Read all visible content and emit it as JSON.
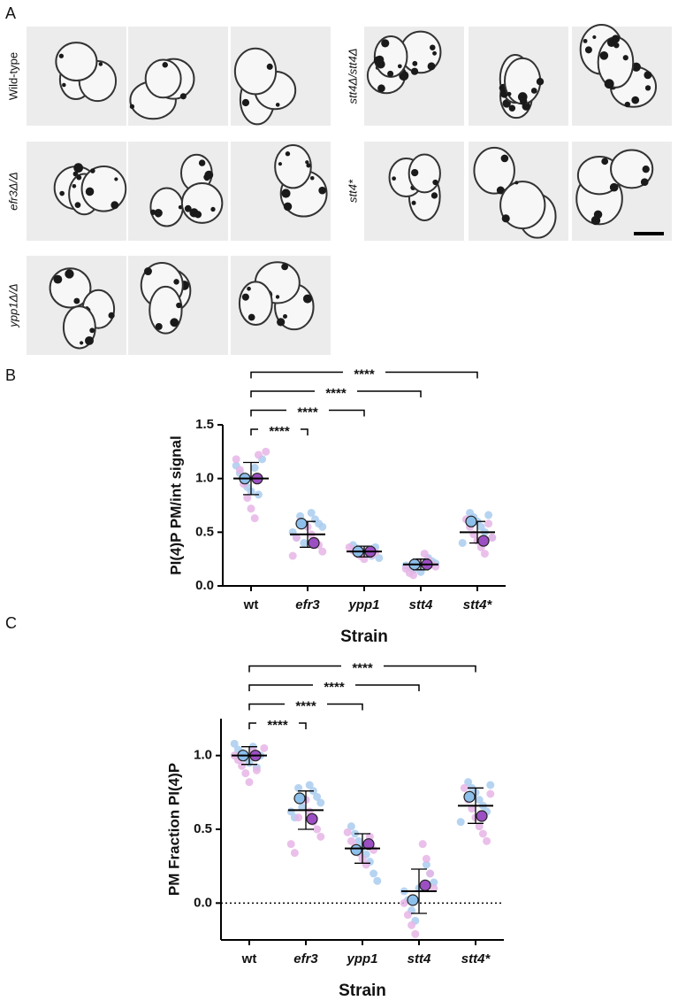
{
  "panel_a": {
    "label": "A",
    "rows": [
      {
        "label": "Wild-type",
        "italic": false
      },
      {
        "label": "efr3Δ/Δ",
        "italic": true
      },
      {
        "label": "ypp1Δ/Δ",
        "italic": true
      },
      {
        "label": "stt4Δ/stt4Δ",
        "italic": true
      },
      {
        "label": "stt4*",
        "italic": true
      }
    ]
  },
  "chart_data": [
    {
      "type": "dotplot",
      "panel_label": "B",
      "ylabel": "PI(4)P PM/int signal",
      "xlabel": "Strain",
      "categories": [
        "wt",
        "efr3",
        "ypp1",
        "stt4",
        "stt4*"
      ],
      "category_italic": [
        false,
        true,
        true,
        true,
        true
      ],
      "ylim": [
        0,
        1.5
      ],
      "yticks": [
        {
          "value": 0,
          "label": "0.0"
        },
        0.5,
        {
          "value": 1,
          "label": "1.0"
        },
        1.5
      ],
      "points": [
        {
          "color": "#a9cdef",
          "values": [
            [
              1.12,
              1.05,
              0.98,
              0.92,
              0.88,
              1.1,
              0.85,
              1.18
            ],
            [
              0.68,
              0.62,
              0.58,
              0.55,
              0.5,
              0.45,
              0.65,
              0.4
            ],
            [
              0.38,
              0.35,
              0.33,
              0.31,
              0.3,
              0.28,
              0.36,
              0.26
            ],
            [
              0.26,
              0.23,
              0.21,
              0.19,
              0.17,
              0.15,
              0.22,
              0.13
            ],
            [
              0.68,
              0.64,
              0.6,
              0.55,
              0.5,
              0.66,
              0.45,
              0.4
            ]
          ]
        },
        {
          "color": "#e6b5e6",
          "values": [
            [
              1.25,
              1.18,
              1.08,
              0.95,
              0.82,
              0.72,
              0.63,
              1.22
            ],
            [
              0.55,
              0.48,
              0.42,
              0.38,
              0.32,
              0.28,
              0.45,
              0.6
            ],
            [
              0.36,
              0.33,
              0.3,
              0.28,
              0.25,
              0.34,
              0.29,
              0.31
            ],
            [
              0.3,
              0.24,
              0.2,
              0.18,
              0.16,
              0.12,
              0.1,
              0.22
            ],
            [
              0.62,
              0.55,
              0.48,
              0.42,
              0.36,
              0.3,
              0.58,
              0.45
            ]
          ]
        }
      ],
      "replicate_means": [
        {
          "color": "#8dbfeb",
          "values": [
            1.0,
            0.58,
            0.32,
            0.2,
            0.6
          ]
        },
        {
          "color": "#9c4fc2",
          "values": [
            1.0,
            0.4,
            0.32,
            0.2,
            0.42
          ]
        }
      ],
      "mean": [
        1.0,
        0.48,
        0.32,
        0.2,
        0.5
      ],
      "sd": [
        0.15,
        0.12,
        0.05,
        0.05,
        0.1
      ],
      "comparisons": [
        {
          "pair": [
            "wt",
            "efr3"
          ],
          "label": "****"
        },
        {
          "pair": [
            "wt",
            "ypp1"
          ],
          "label": "****"
        },
        {
          "pair": [
            "wt",
            "stt4"
          ],
          "label": "****"
        },
        {
          "pair": [
            "wt",
            "stt4*"
          ],
          "label": "****"
        }
      ]
    },
    {
      "type": "dotplot",
      "panel_label": "C",
      "ylabel": "PM Fraction PI(4)P",
      "xlabel": "Strain",
      "categories": [
        "wt",
        "efr3",
        "ypp1",
        "stt4",
        "stt4*"
      ],
      "category_italic": [
        false,
        true,
        true,
        true,
        true
      ],
      "ylim": [
        -0.25,
        1.25
      ],
      "yticks": [
        {
          "value": 0,
          "label": "0.0"
        },
        0.5,
        {
          "value": 1,
          "label": "1.0"
        }
      ],
      "hline": 0,
      "points": [
        {
          "color": "#a9cdef",
          "values": [
            [
              1.08,
              1.04,
              1.02,
              0.98,
              0.95,
              1.06,
              0.92,
              1.0
            ],
            [
              0.8,
              0.76,
              0.72,
              0.68,
              0.62,
              0.58,
              0.78,
              0.65
            ],
            [
              0.52,
              0.47,
              0.42,
              0.38,
              0.33,
              0.28,
              0.2,
              0.15
            ],
            [
              0.26,
              0.2,
              0.14,
              0.08,
              0.02,
              -0.05,
              -0.12,
              0.1
            ],
            [
              0.82,
              0.78,
              0.75,
              0.7,
              0.66,
              0.62,
              0.8,
              0.55
            ]
          ]
        },
        {
          "color": "#e6b5e6",
          "values": [
            [
              1.05,
              1.0,
              0.97,
              0.93,
              0.88,
              0.82,
              1.03,
              0.9
            ],
            [
              0.7,
              0.62,
              0.55,
              0.5,
              0.45,
              0.4,
              0.34,
              0.58
            ],
            [
              0.48,
              0.42,
              0.38,
              0.34,
              0.3,
              0.26,
              0.45,
              0.36
            ],
            [
              0.4,
              0.3,
              0.2,
              0.1,
              0.0,
              -0.08,
              -0.15,
              -0.21
            ],
            [
              0.78,
              0.7,
              0.64,
              0.58,
              0.52,
              0.47,
              0.42,
              0.74
            ]
          ]
        }
      ],
      "replicate_means": [
        {
          "color": "#8dbfeb",
          "values": [
            1.0,
            0.71,
            0.36,
            0.02,
            0.72
          ]
        },
        {
          "color": "#9c4fc2",
          "values": [
            1.0,
            0.57,
            0.4,
            0.12,
            0.59
          ]
        }
      ],
      "mean": [
        1.0,
        0.63,
        0.37,
        0.08,
        0.66
      ],
      "sd": [
        0.06,
        0.13,
        0.1,
        0.15,
        0.12
      ],
      "comparisons": [
        {
          "pair": [
            "wt",
            "efr3"
          ],
          "label": "****"
        },
        {
          "pair": [
            "wt",
            "ypp1"
          ],
          "label": "****"
        },
        {
          "pair": [
            "wt",
            "stt4"
          ],
          "label": "****"
        },
        {
          "pair": [
            "wt",
            "stt4*"
          ],
          "label": "****"
        }
      ]
    }
  ]
}
